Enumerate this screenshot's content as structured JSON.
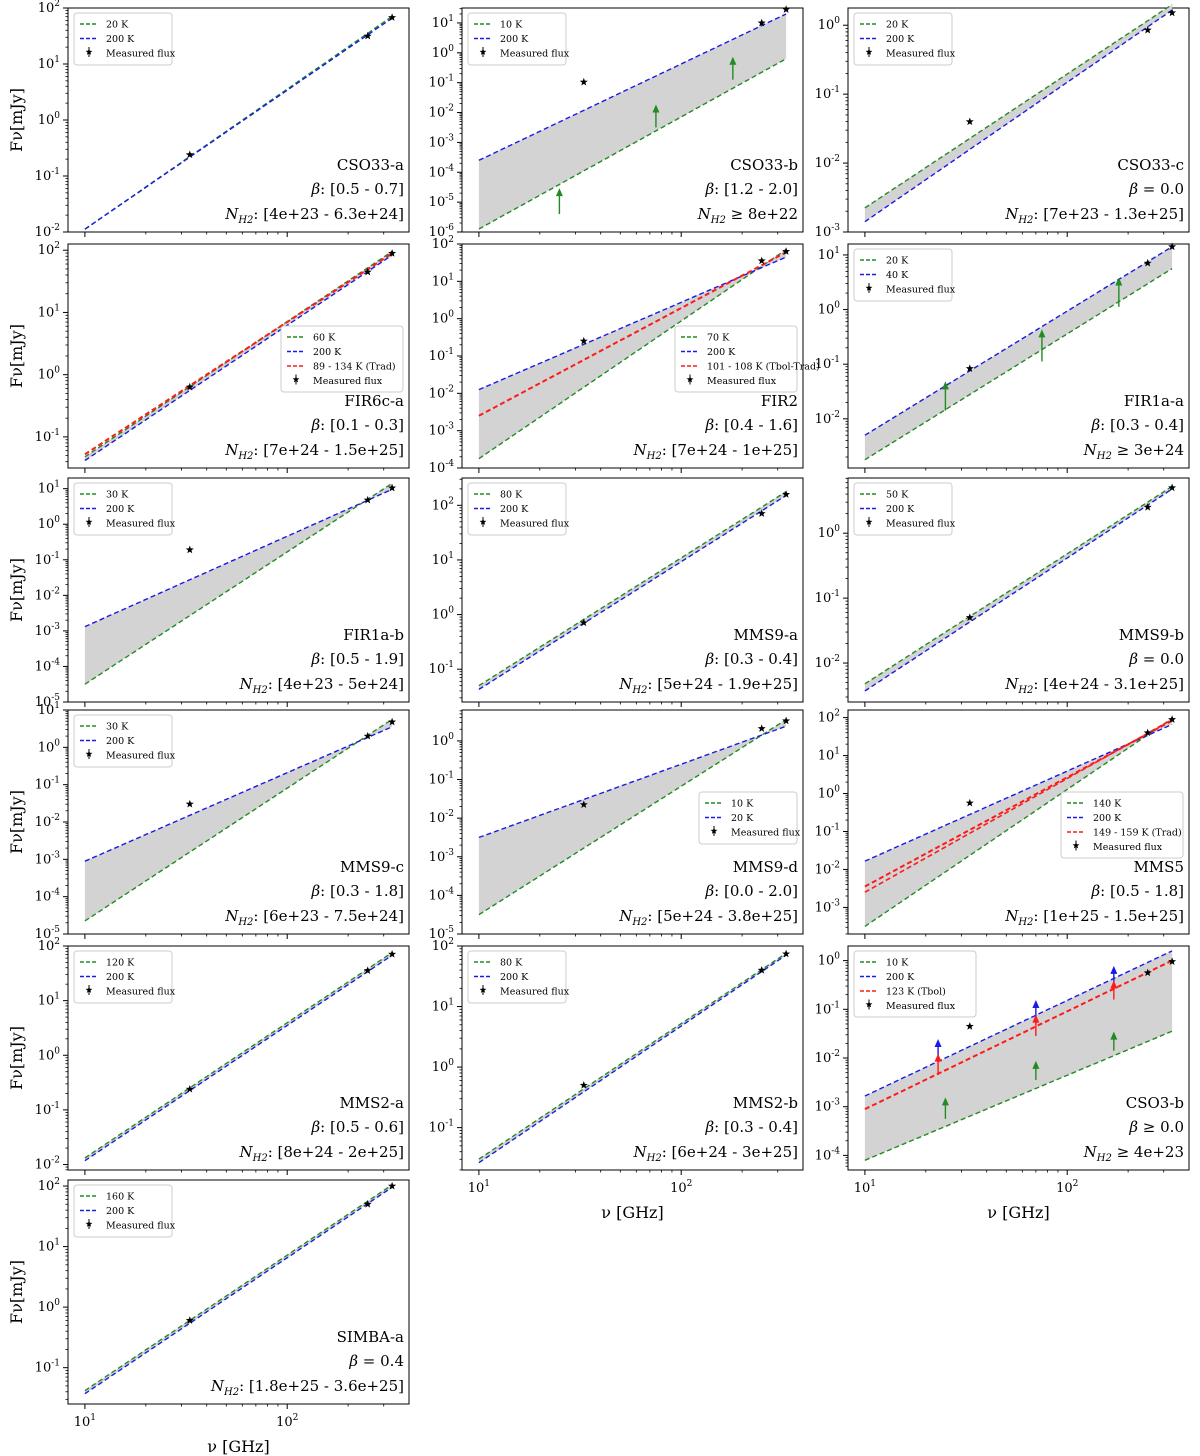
{
  "figure": {
    "y_axis_label": "Fν[mJy]",
    "x_axis_label": "ν [GHz]",
    "legend_measured": "Measured flux",
    "colors": {
      "cold": "#228b22",
      "warm": "#1a1ae6",
      "extra": "#ff1a1a",
      "band": "#d3d3d3",
      "star": "#000000"
    }
  },
  "chart_data": [
    {
      "name": "CSO33-a",
      "type": "line",
      "xlim": [
        10,
        330
      ],
      "ylim": [
        -2,
        2
      ],
      "t_cold": "20 K",
      "t_warm": "200 K",
      "band": false,
      "cold": [
        -1.95,
        1.85
      ],
      "warm": [
        -1.95,
        1.82
      ],
      "points": [
        [
          33,
          -0.62
        ],
        [
          250,
          1.5
        ],
        [
          330,
          1.83
        ]
      ],
      "beta": "β: [0.5 - 0.7]",
      "nh2": "N_H2: [4e+23 - 6.3e+24]",
      "legend": "tl"
    },
    {
      "name": "CSO33-b",
      "type": "line",
      "xlim": [
        10,
        330
      ],
      "ylim": [
        -6,
        1.5
      ],
      "t_cold": "10 K",
      "t_warm": "200 K",
      "band": true,
      "cold": [
        -5.9,
        -0.2
      ],
      "warm": [
        -3.6,
        1.3
      ],
      "points": [
        [
          33,
          -0.98
        ],
        [
          250,
          1.0
        ],
        [
          330,
          1.45
        ]
      ],
      "arrows": [
        [
          25,
          -5.4,
          -4.6,
          "cold"
        ],
        [
          75,
          -2.5,
          -1.8,
          "cold"
        ],
        [
          180,
          -0.9,
          -0.2,
          "cold"
        ]
      ],
      "beta": "β: [1.2 - 2.0]",
      "nh2": "N_H2 ≥ 8e+22",
      "legend": "tl"
    },
    {
      "name": "CSO33-c",
      "type": "line",
      "xlim": [
        10,
        330
      ],
      "ylim": [
        -3,
        0.25
      ],
      "t_cold": "20 K",
      "t_warm": "200 K",
      "band": true,
      "cold": [
        -2.65,
        0.3
      ],
      "warm": [
        -2.85,
        0.22
      ],
      "points": [
        [
          33,
          -1.4
        ],
        [
          250,
          -0.07
        ],
        [
          330,
          0.18
        ]
      ],
      "beta": "β = 0.0",
      "nh2": "N_H2: [7e+23 - 1.3e+25]",
      "legend": "tl"
    },
    {
      "name": "FIR6c-a",
      "type": "line",
      "xlim": [
        10,
        330
      ],
      "ylim": [
        -1.5,
        2.1
      ],
      "t_cold": "60 K",
      "t_warm": "200 K",
      "t_extra": "89 - 134 K (Trad)",
      "band": true,
      "cold": [
        -1.32,
        1.98
      ],
      "warm": [
        -1.38,
        1.92
      ],
      "extra": [
        -1.28,
        1.95
      ],
      "points": [
        [
          33,
          -0.2
        ],
        [
          250,
          1.65
        ],
        [
          330,
          1.95
        ]
      ],
      "beta": "β: [0.1 - 0.3]",
      "nh2": "N_H2: [7e+24 - 1.5e+25]",
      "legend": "mr"
    },
    {
      "name": "FIR2",
      "type": "line",
      "xlim": [
        10,
        330
      ],
      "ylim": [
        -4,
        2
      ],
      "t_cold": "70 K",
      "t_warm": "200 K",
      "t_extra": "101 - 108 K (Tbol-Trad)",
      "band": true,
      "cold": [
        -3.75,
        1.85
      ],
      "warm": [
        -1.9,
        1.65
      ],
      "extra": [
        -2.6,
        1.78
      ],
      "points": [
        [
          33,
          -0.6
        ],
        [
          250,
          1.55
        ],
        [
          330,
          1.8
        ]
      ],
      "beta": "β: [0.4 - 1.6]",
      "nh2": "N_H2: [7e+24 - 1e+25]",
      "legend": "mr"
    },
    {
      "name": "FIR1a-a",
      "type": "line",
      "xlim": [
        10,
        330
      ],
      "ylim": [
        -2.9,
        1.2
      ],
      "t_cold": "20 K",
      "t_warm": "40 K",
      "band": true,
      "cold": [
        -2.75,
        0.75
      ],
      "warm": [
        -2.3,
        1.15
      ],
      "points": [
        [
          33,
          -1.08
        ],
        [
          250,
          0.85
        ],
        [
          330,
          1.15
        ]
      ],
      "arrows": [
        [
          25,
          -1.85,
          -1.35,
          "cold"
        ],
        [
          75,
          -0.95,
          -0.4,
          "cold"
        ],
        [
          180,
          0.05,
          0.55,
          "cold"
        ]
      ],
      "beta": "β: [0.3 - 0.4]",
      "nh2": "N_H2 ≥ 3e+24",
      "legend": "tl"
    },
    {
      "name": "FIR1a-b",
      "type": "line",
      "xlim": [
        10,
        330
      ],
      "ylim": [
        -5,
        1.3
      ],
      "t_cold": "30 K",
      "t_warm": "200 K",
      "band": true,
      "cold": [
        -4.5,
        1.15
      ],
      "warm": [
        -2.88,
        0.98
      ],
      "points": [
        [
          33,
          -0.72
        ],
        [
          250,
          0.68
        ],
        [
          330,
          1.02
        ]
      ],
      "beta": "β: [0.5 - 1.9]",
      "nh2": "N_H2: [4e+23 - 5e+24]",
      "legend": "tl"
    },
    {
      "name": "MMS9-a",
      "type": "line",
      "xlim": [
        10,
        330
      ],
      "ylim": [
        -1.6,
        2.5
      ],
      "t_cold": "80 K",
      "t_warm": "200 K",
      "band": true,
      "cold": [
        -1.3,
        2.25
      ],
      "warm": [
        -1.37,
        2.18
      ],
      "points": [
        [
          33,
          -0.15
        ],
        [
          250,
          1.85
        ],
        [
          330,
          2.2
        ]
      ],
      "beta": "β: [0.3 - 0.4]",
      "nh2": "N_H2: [5e+24 - 1.9e+25]",
      "legend": "tl"
    },
    {
      "name": "MMS9-b",
      "type": "line",
      "xlim": [
        10,
        330
      ],
      "ylim": [
        -2.6,
        0.85
      ],
      "t_cold": "50 K",
      "t_warm": "200 K",
      "band": true,
      "cold": [
        -2.32,
        0.72
      ],
      "warm": [
        -2.43,
        0.68
      ],
      "points": [
        [
          33,
          -1.3
        ],
        [
          250,
          0.4
        ],
        [
          330,
          0.7
        ]
      ],
      "beta": "β = 0.0",
      "nh2": "N_H2: [4e+24 - 3.1e+25]",
      "legend": "tl"
    },
    {
      "name": "MMS9-c",
      "type": "line",
      "xlim": [
        10,
        330
      ],
      "ylim": [
        -5,
        1
      ],
      "t_cold": "30 K",
      "t_warm": "200 K",
      "band": true,
      "cold": [
        -4.65,
        0.75
      ],
      "warm": [
        -3.05,
        0.55
      ],
      "points": [
        [
          33,
          -1.52
        ],
        [
          250,
          0.3
        ],
        [
          330,
          0.68
        ]
      ],
      "beta": "β: [0.3 - 1.8]",
      "nh2": "N_H2: [6e+23 - 7.5e+24]",
      "legend": "tl"
    },
    {
      "name": "MMS9-d",
      "type": "line",
      "xlim": [
        10,
        330
      ],
      "ylim": [
        -5,
        0.8
      ],
      "t_cold": "10 K",
      "t_warm": "20 K",
      "band": true,
      "cold": [
        -4.5,
        0.55
      ],
      "warm": [
        -2.5,
        0.38
      ],
      "points": [
        [
          33,
          -1.65
        ],
        [
          250,
          0.32
        ],
        [
          330,
          0.52
        ]
      ],
      "beta": "β: [0.0 - 2.0]",
      "nh2": "N_H2: [5e+24 - 3.8e+25]",
      "legend": "mr"
    },
    {
      "name": "MMS5",
      "type": "line",
      "xlim": [
        10,
        330
      ],
      "ylim": [
        -3.7,
        2.2
      ],
      "t_cold": "140 K",
      "t_warm": "200 K",
      "t_extra": "149 - 159 K (Trad)",
      "band": true,
      "cold": [
        -3.5,
        1.98
      ],
      "warm": [
        -1.78,
        1.82
      ],
      "extra": [
        -2.45,
        1.92
      ],
      "points": [
        [
          33,
          -0.25
        ],
        [
          250,
          1.6
        ],
        [
          330,
          1.95
        ]
      ],
      "beta": "β: [0.5 - 1.8]",
      "nh2": "N_H2: [1e+25 - 1.5e+25]",
      "legend": "mr"
    },
    {
      "name": "MMS2-a",
      "type": "line",
      "xlim": [
        10,
        330
      ],
      "ylim": [
        -2.1,
        2
      ],
      "t_cold": "120 K",
      "t_warm": "200 K",
      "band": true,
      "cold": [
        -1.88,
        1.88
      ],
      "warm": [
        -1.93,
        1.83
      ],
      "points": [
        [
          33,
          -0.62
        ],
        [
          250,
          1.55
        ],
        [
          330,
          1.85
        ]
      ],
      "beta": "β: [0.5 - 0.6]",
      "nh2": "N_H2: [8e+24 - 2e+25]",
      "legend": "tl"
    },
    {
      "name": "MMS2-b",
      "type": "line",
      "xlim": [
        10,
        330
      ],
      "ylim": [
        -1.7,
        2
      ],
      "t_cold": "80 K",
      "t_warm": "200 K",
      "band": true,
      "cold": [
        -1.52,
        1.88
      ],
      "warm": [
        -1.58,
        1.85
      ],
      "points": [
        [
          33,
          -0.3
        ],
        [
          250,
          1.6
        ],
        [
          330,
          1.87
        ]
      ],
      "beta": "β: [0.3 - 0.4]",
      "nh2": "N_H2: [6e+24 - 3e+25]",
      "legend": "tl"
    },
    {
      "name": "CSO3-b",
      "type": "line",
      "xlim": [
        10,
        330
      ],
      "ylim": [
        -4.3,
        0.3
      ],
      "t_cold": "10 K",
      "t_warm": "200 K",
      "t_extra": "123 K (Tbol)",
      "band": true,
      "cold": [
        -4.1,
        -1.45
      ],
      "warm": [
        -2.78,
        0.2
      ],
      "extra": [
        -3.05,
        0
      ],
      "points": [
        [
          33,
          -1.35
        ],
        [
          250,
          -0.25
        ],
        [
          330,
          -0.02
        ]
      ],
      "arrows": [
        [
          25,
          -3.25,
          -2.85,
          "cold"
        ],
        [
          70,
          -2.45,
          -2.1,
          "cold"
        ],
        [
          170,
          -1.85,
          -1.5,
          "cold"
        ],
        [
          23,
          -2.05,
          -1.65,
          "warm"
        ],
        [
          70,
          -1.3,
          -0.85,
          "warm"
        ],
        [
          170,
          -0.6,
          -0.15,
          "warm"
        ],
        [
          23,
          -2.35,
          -1.95,
          "extra"
        ],
        [
          70,
          -1.55,
          -1.15,
          "extra"
        ],
        [
          170,
          -0.8,
          -0.45,
          "extra"
        ]
      ],
      "beta": "β ≥ 0.0",
      "nh2": "N_H2 ≥ 4e+23",
      "legend": "tl"
    },
    {
      "name": "SIMBA-a",
      "type": "line",
      "xlim": [
        10,
        330
      ],
      "ylim": [
        -1.6,
        2.1
      ],
      "t_cold": "160 K",
      "t_warm": "200 K",
      "band": true,
      "cold": [
        -1.38,
        2.02
      ],
      "warm": [
        -1.43,
        1.98
      ],
      "points": [
        [
          33,
          -0.22
        ],
        [
          250,
          1.7
        ],
        [
          330,
          2.0
        ]
      ],
      "beta": "β = 0.4",
      "nh2": "N_H2: [1.8e+25 - 3.6e+25]",
      "legend": "tl"
    }
  ]
}
